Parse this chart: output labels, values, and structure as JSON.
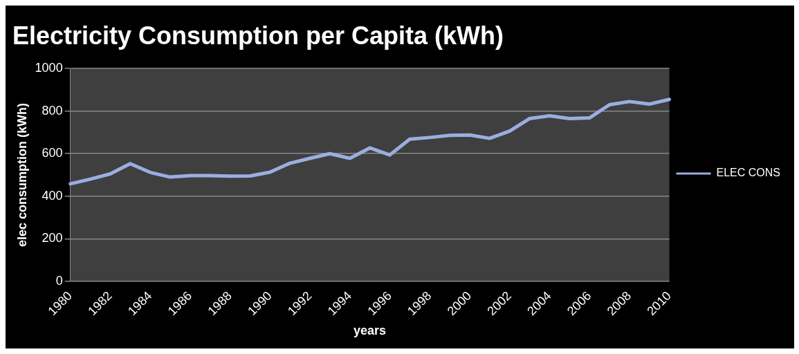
{
  "chart_data": {
    "type": "line",
    "title": "Electricity Consumption per Capita (kWh)",
    "xlabel": "years",
    "ylabel": "elec consumption (kWh)",
    "categories": [
      "1980",
      null,
      "1982",
      null,
      "1984",
      null,
      "1986",
      null,
      "1988",
      null,
      "1990",
      null,
      "1992",
      null,
      "1994",
      null,
      "1996",
      null,
      "1998",
      null,
      "2000",
      null,
      "2002",
      null,
      "2004",
      null,
      "2006",
      null,
      "2008",
      null,
      "2010"
    ],
    "series": [
      {
        "name": "ELEC CONS",
        "color": "#9aaee0",
        "values": [
          458,
          480,
          505,
          553,
          512,
          490,
          497,
          497,
          494,
          495,
          513,
          555,
          578,
          600,
          578,
          627,
          594,
          668,
          676,
          686,
          688,
          672,
          706,
          765,
          778,
          765,
          768,
          830,
          845,
          833,
          855
        ]
      }
    ],
    "ylim": [
      0,
      1000
    ],
    "yticks": [
      0,
      200,
      400,
      600,
      800,
      1000
    ],
    "grid": "y",
    "legend": "right",
    "marker": "none",
    "line_style": "solid"
  }
}
